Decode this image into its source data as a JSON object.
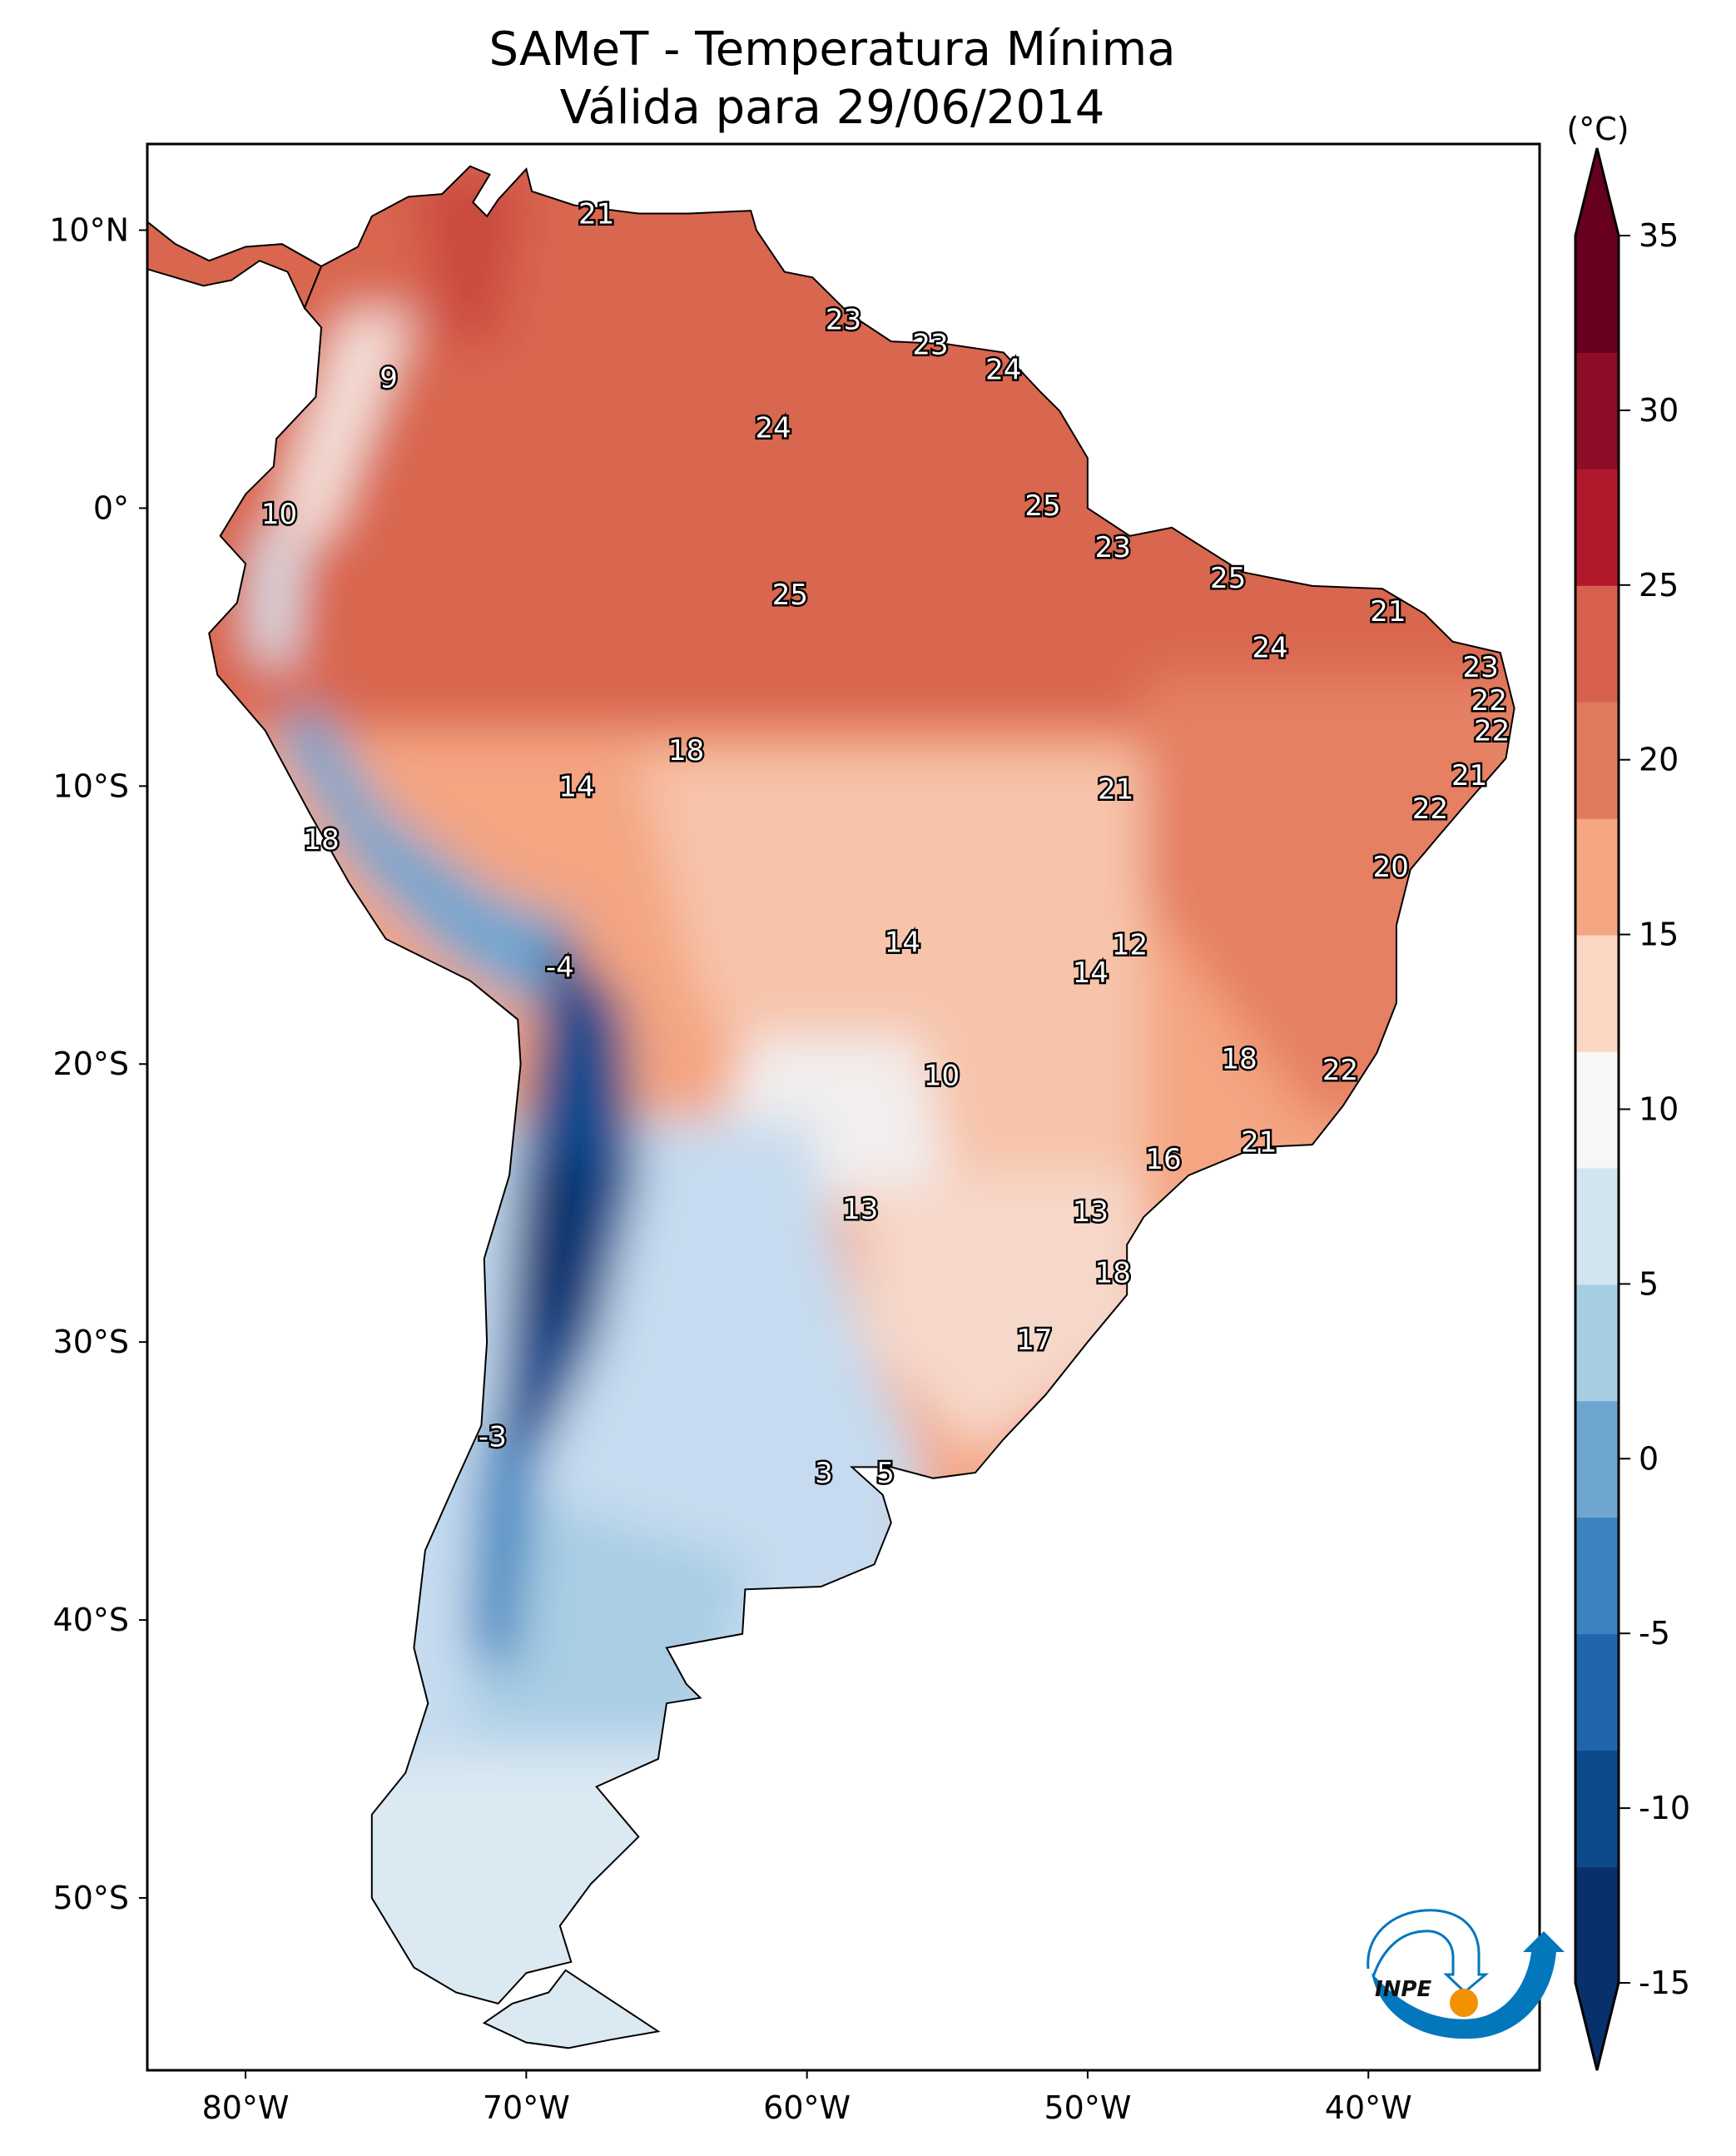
{
  "title": {
    "line1": "SAMeT - Temperatura Mínima",
    "line2": "Válida para 29/06/2014"
  },
  "map": {
    "extent_lon": [
      -83.5,
      -33.9
    ],
    "extent_lat": [
      -56.2,
      13.1
    ],
    "lon_ticks": [
      {
        "value": -80,
        "label": "80°W"
      },
      {
        "value": -70,
        "label": "70°W"
      },
      {
        "value": -60,
        "label": "60°W"
      },
      {
        "value": -50,
        "label": "50°W"
      },
      {
        "value": -40,
        "label": "40°W"
      }
    ],
    "lat_ticks": [
      {
        "value": 10,
        "label": "10°N"
      },
      {
        "value": 0,
        "label": "0°"
      },
      {
        "value": -10,
        "label": "10°S"
      },
      {
        "value": -20,
        "label": "20°S"
      },
      {
        "value": -30,
        "label": "30°S"
      },
      {
        "value": -40,
        "label": "40°S"
      },
      {
        "value": -50,
        "label": "50°S"
      }
    ],
    "value_labels": [
      {
        "lon": -67.5,
        "lat": 10.6,
        "text": "21"
      },
      {
        "lon": -58.7,
        "lat": 6.8,
        "text": "23"
      },
      {
        "lon": -55.6,
        "lat": 5.9,
        "text": "23"
      },
      {
        "lon": -53.0,
        "lat": 5.0,
        "text": "24"
      },
      {
        "lon": -74.9,
        "lat": 4.7,
        "text": "9"
      },
      {
        "lon": -61.2,
        "lat": 2.9,
        "text": "24"
      },
      {
        "lon": -78.8,
        "lat": -0.2,
        "text": "10"
      },
      {
        "lon": -51.6,
        "lat": 0.1,
        "text": "25"
      },
      {
        "lon": -49.1,
        "lat": -1.4,
        "text": "23"
      },
      {
        "lon": -45.0,
        "lat": -2.5,
        "text": "25"
      },
      {
        "lon": -60.6,
        "lat": -3.1,
        "text": "25"
      },
      {
        "lon": -39.3,
        "lat": -3.7,
        "text": "21"
      },
      {
        "lon": -43.5,
        "lat": -5.0,
        "text": "24"
      },
      {
        "lon": -36.0,
        "lat": -5.7,
        "text": "23"
      },
      {
        "lon": -35.7,
        "lat": -6.9,
        "text": "22"
      },
      {
        "lon": -35.6,
        "lat": -8.0,
        "text": "22"
      },
      {
        "lon": -64.3,
        "lat": -8.7,
        "text": "18"
      },
      {
        "lon": -36.4,
        "lat": -9.6,
        "text": "21"
      },
      {
        "lon": -68.2,
        "lat": -10.0,
        "text": "14"
      },
      {
        "lon": -49.0,
        "lat": -10.1,
        "text": "21"
      },
      {
        "lon": -37.8,
        "lat": -10.8,
        "text": "22"
      },
      {
        "lon": -77.3,
        "lat": -11.9,
        "text": "18"
      },
      {
        "lon": -39.2,
        "lat": -12.9,
        "text": "20"
      },
      {
        "lon": -56.6,
        "lat": -15.6,
        "text": "14"
      },
      {
        "lon": -48.5,
        "lat": -15.7,
        "text": "12"
      },
      {
        "lon": -68.8,
        "lat": -16.5,
        "text": "-4"
      },
      {
        "lon": -49.9,
        "lat": -16.7,
        "text": "14"
      },
      {
        "lon": -55.2,
        "lat": -20.4,
        "text": "10"
      },
      {
        "lon": -44.6,
        "lat": -19.8,
        "text": "18"
      },
      {
        "lon": -41.0,
        "lat": -20.2,
        "text": "22"
      },
      {
        "lon": -43.9,
        "lat": -22.8,
        "text": "21"
      },
      {
        "lon": -47.3,
        "lat": -23.4,
        "text": "16"
      },
      {
        "lon": -58.1,
        "lat": -25.2,
        "text": "13"
      },
      {
        "lon": -49.9,
        "lat": -25.3,
        "text": "13"
      },
      {
        "lon": -49.1,
        "lat": -27.5,
        "text": "18"
      },
      {
        "lon": -51.9,
        "lat": -29.9,
        "text": "17"
      },
      {
        "lon": -71.2,
        "lat": -33.4,
        "text": "-3"
      },
      {
        "lon": -59.4,
        "lat": -34.7,
        "text": "3"
      },
      {
        "lon": -57.2,
        "lat": -34.7,
        "text": "5"
      }
    ]
  },
  "colorbar": {
    "unit_label": "(°C)",
    "min": -15,
    "max": 35,
    "extend": "both",
    "colormap": "RdBu_r",
    "ticks": [
      {
        "value": 35,
        "label": "35"
      },
      {
        "value": 30,
        "label": "30"
      },
      {
        "value": 25,
        "label": "25"
      },
      {
        "value": 20,
        "label": "20"
      },
      {
        "value": 15,
        "label": "15"
      },
      {
        "value": 10,
        "label": "10"
      },
      {
        "value": 5,
        "label": "5"
      },
      {
        "value": 0,
        "label": "0"
      },
      {
        "value": -5,
        "label": "-5"
      },
      {
        "value": -10,
        "label": "-10"
      },
      {
        "value": -15,
        "label": "-15"
      }
    ],
    "colors": [
      "#08306b",
      "#0d4a8c",
      "#2166ac",
      "#3b83be",
      "#6ea6d0",
      "#a6cee3",
      "#d1e5f0",
      "#f7f7f7",
      "#fbd6c3",
      "#f4a582",
      "#e07a5f",
      "#d6604d",
      "#b2182b",
      "#8c0d25",
      "#67001f"
    ]
  },
  "logo": {
    "text": "INPE",
    "colors": {
      "blue": "#0377bc",
      "orange": "#f39200"
    }
  }
}
